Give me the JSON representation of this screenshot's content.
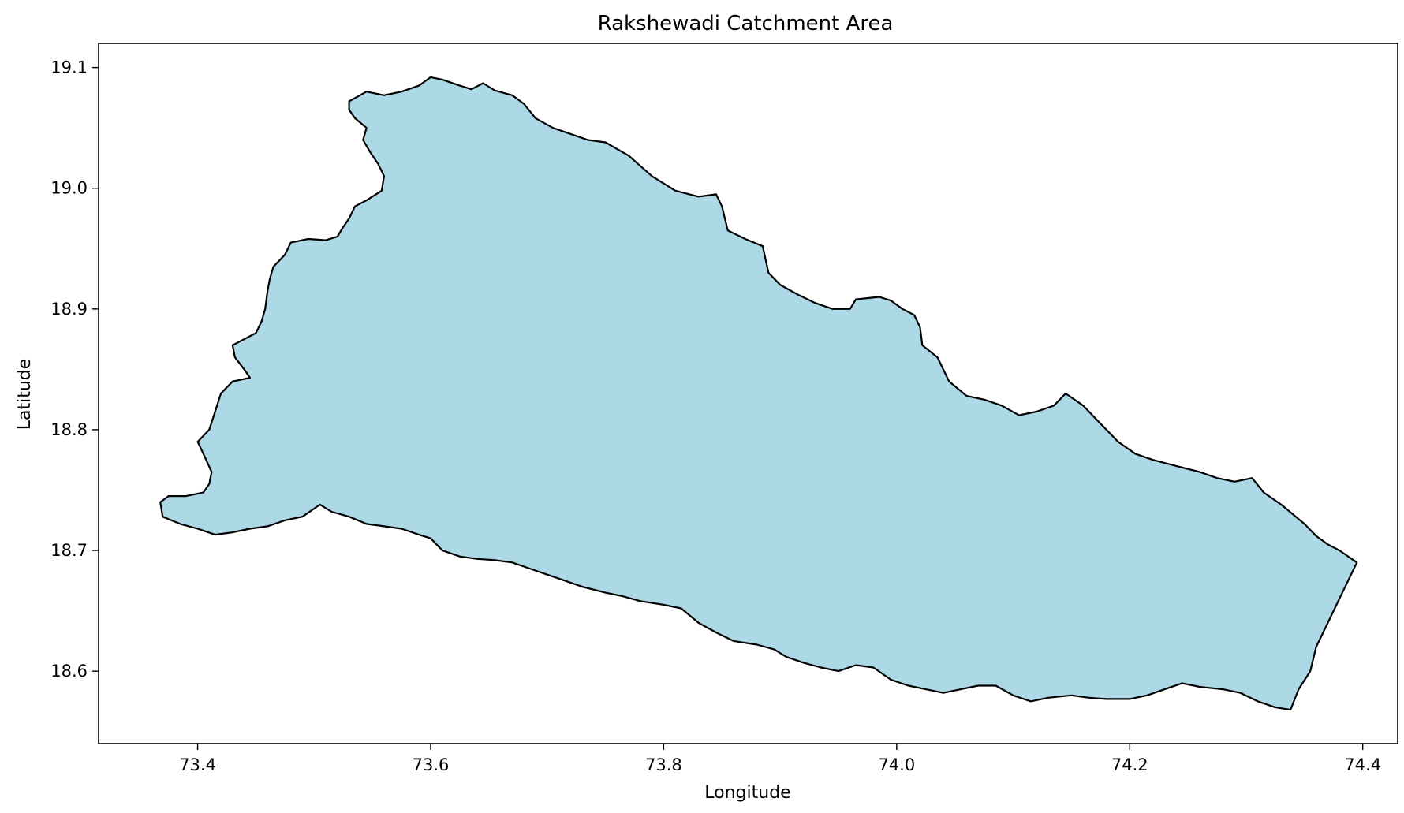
{
  "title": "Rakshewadi Catchment Area",
  "xlabel": "Longitude",
  "ylabel": "Latitude",
  "fill_color": "#add8e6",
  "edge_color": "#000000",
  "xlim": [
    73.315,
    74.43
  ],
  "ylim": [
    18.54,
    19.12
  ],
  "xticks": [
    {
      "value": 73.4,
      "label": "73.4"
    },
    {
      "value": 73.6,
      "label": "73.6"
    },
    {
      "value": 73.8,
      "label": "73.8"
    },
    {
      "value": 74.0,
      "label": "74.0"
    },
    {
      "value": 74.2,
      "label": "74.2"
    },
    {
      "value": 74.4,
      "label": "74.4"
    }
  ],
  "yticks": [
    {
      "value": 18.6,
      "label": "18.6"
    },
    {
      "value": 18.7,
      "label": "18.7"
    },
    {
      "value": 18.8,
      "label": "18.8"
    },
    {
      "value": 18.9,
      "label": "18.9"
    },
    {
      "value": 19.0,
      "label": "19.0"
    },
    {
      "value": 19.1,
      "label": "19.1"
    }
  ],
  "boundary": [
    [
      73.53,
      19.072
    ],
    [
      73.545,
      19.08
    ],
    [
      73.56,
      19.077
    ],
    [
      73.575,
      19.08
    ],
    [
      73.59,
      19.085
    ],
    [
      73.6,
      19.092
    ],
    [
      73.61,
      19.09
    ],
    [
      73.625,
      19.085
    ],
    [
      73.635,
      19.082
    ],
    [
      73.645,
      19.087
    ],
    [
      73.655,
      19.081
    ],
    [
      73.67,
      19.077
    ],
    [
      73.68,
      19.07
    ],
    [
      73.69,
      19.058
    ],
    [
      73.705,
      19.05
    ],
    [
      73.72,
      19.045
    ],
    [
      73.735,
      19.04
    ],
    [
      73.75,
      19.038
    ],
    [
      73.77,
      19.027
    ],
    [
      73.79,
      19.01
    ],
    [
      73.81,
      18.998
    ],
    [
      73.83,
      18.993
    ],
    [
      73.845,
      18.995
    ],
    [
      73.85,
      18.985
    ],
    [
      73.855,
      18.965
    ],
    [
      73.87,
      18.958
    ],
    [
      73.885,
      18.952
    ],
    [
      73.89,
      18.93
    ],
    [
      73.9,
      18.92
    ],
    [
      73.915,
      18.912
    ],
    [
      73.93,
      18.905
    ],
    [
      73.945,
      18.9
    ],
    [
      73.96,
      18.9
    ],
    [
      73.965,
      18.908
    ],
    [
      73.985,
      18.91
    ],
    [
      73.995,
      18.907
    ],
    [
      74.005,
      18.9
    ],
    [
      74.015,
      18.895
    ],
    [
      74.02,
      18.885
    ],
    [
      74.022,
      18.87
    ],
    [
      74.035,
      18.86
    ],
    [
      74.045,
      18.84
    ],
    [
      74.06,
      18.828
    ],
    [
      74.075,
      18.825
    ],
    [
      74.09,
      18.82
    ],
    [
      74.105,
      18.812
    ],
    [
      74.12,
      18.815
    ],
    [
      74.135,
      18.82
    ],
    [
      74.145,
      18.83
    ],
    [
      74.16,
      18.82
    ],
    [
      74.17,
      18.81
    ],
    [
      74.18,
      18.8
    ],
    [
      74.19,
      18.79
    ],
    [
      74.205,
      18.78
    ],
    [
      74.22,
      18.775
    ],
    [
      74.24,
      18.77
    ],
    [
      74.26,
      18.765
    ],
    [
      74.275,
      18.76
    ],
    [
      74.29,
      18.757
    ],
    [
      74.305,
      18.76
    ],
    [
      74.315,
      18.748
    ],
    [
      74.33,
      18.738
    ],
    [
      74.34,
      18.73
    ],
    [
      74.35,
      18.722
    ],
    [
      74.36,
      18.712
    ],
    [
      74.37,
      18.705
    ],
    [
      74.38,
      18.7
    ],
    [
      74.395,
      18.69
    ],
    [
      74.39,
      18.68
    ],
    [
      74.38,
      18.66
    ],
    [
      74.37,
      18.64
    ],
    [
      74.36,
      18.62
    ],
    [
      74.355,
      18.6
    ],
    [
      74.345,
      18.585
    ],
    [
      74.338,
      18.568
    ],
    [
      74.325,
      18.57
    ],
    [
      74.31,
      18.575
    ],
    [
      74.295,
      18.582
    ],
    [
      74.28,
      18.585
    ],
    [
      74.26,
      18.587
    ],
    [
      74.245,
      18.59
    ],
    [
      74.23,
      18.585
    ],
    [
      74.215,
      18.58
    ],
    [
      74.2,
      18.577
    ],
    [
      74.18,
      18.577
    ],
    [
      74.165,
      18.578
    ],
    [
      74.15,
      18.58
    ],
    [
      74.13,
      18.578
    ],
    [
      74.115,
      18.575
    ],
    [
      74.1,
      18.58
    ],
    [
      74.085,
      18.588
    ],
    [
      74.07,
      18.588
    ],
    [
      74.055,
      18.585
    ],
    [
      74.04,
      18.582
    ],
    [
      74.025,
      18.585
    ],
    [
      74.01,
      18.588
    ],
    [
      73.995,
      18.593
    ],
    [
      73.98,
      18.603
    ],
    [
      73.965,
      18.605
    ],
    [
      73.95,
      18.6
    ],
    [
      73.935,
      18.603
    ],
    [
      73.92,
      18.607
    ],
    [
      73.905,
      18.612
    ],
    [
      73.895,
      18.618
    ],
    [
      73.88,
      18.622
    ],
    [
      73.86,
      18.625
    ],
    [
      73.845,
      18.632
    ],
    [
      73.83,
      18.64
    ],
    [
      73.815,
      18.652
    ],
    [
      73.8,
      18.655
    ],
    [
      73.78,
      18.658
    ],
    [
      73.765,
      18.662
    ],
    [
      73.75,
      18.665
    ],
    [
      73.73,
      18.67
    ],
    [
      73.715,
      18.675
    ],
    [
      73.7,
      18.68
    ],
    [
      73.685,
      18.685
    ],
    [
      73.67,
      18.69
    ],
    [
      73.655,
      18.692
    ],
    [
      73.64,
      18.693
    ],
    [
      73.625,
      18.695
    ],
    [
      73.61,
      18.7
    ],
    [
      73.6,
      18.71
    ],
    [
      73.59,
      18.713
    ],
    [
      73.575,
      18.718
    ],
    [
      73.56,
      18.72
    ],
    [
      73.545,
      18.722
    ],
    [
      73.53,
      18.728
    ],
    [
      73.515,
      18.732
    ],
    [
      73.505,
      18.738
    ],
    [
      73.49,
      18.728
    ],
    [
      73.475,
      18.725
    ],
    [
      73.46,
      18.72
    ],
    [
      73.445,
      18.718
    ],
    [
      73.43,
      18.715
    ],
    [
      73.415,
      18.713
    ],
    [
      73.4,
      18.718
    ],
    [
      73.385,
      18.722
    ],
    [
      73.37,
      18.728
    ],
    [
      73.368,
      18.74
    ],
    [
      73.375,
      18.745
    ],
    [
      73.39,
      18.745
    ],
    [
      73.405,
      18.748
    ],
    [
      73.41,
      18.755
    ],
    [
      73.412,
      18.765
    ],
    [
      73.405,
      18.78
    ],
    [
      73.4,
      18.79
    ],
    [
      73.41,
      18.8
    ],
    [
      73.415,
      18.815
    ],
    [
      73.42,
      18.83
    ],
    [
      73.43,
      18.84
    ],
    [
      73.445,
      18.843
    ],
    [
      73.44,
      18.85
    ],
    [
      73.432,
      18.86
    ],
    [
      73.43,
      18.87
    ],
    [
      73.44,
      18.875
    ],
    [
      73.45,
      18.88
    ],
    [
      73.455,
      18.89
    ],
    [
      73.458,
      18.9
    ],
    [
      73.46,
      18.915
    ],
    [
      73.462,
      18.925
    ],
    [
      73.465,
      18.935
    ],
    [
      73.475,
      18.945
    ],
    [
      73.48,
      18.955
    ],
    [
      73.495,
      18.958
    ],
    [
      73.51,
      18.957
    ],
    [
      73.52,
      18.96
    ],
    [
      73.525,
      18.968
    ],
    [
      73.53,
      18.975
    ],
    [
      73.535,
      18.985
    ],
    [
      73.545,
      18.99
    ],
    [
      73.558,
      18.998
    ],
    [
      73.56,
      19.01
    ],
    [
      73.555,
      19.02
    ],
    [
      73.548,
      19.03
    ],
    [
      73.542,
      19.04
    ],
    [
      73.545,
      19.05
    ],
    [
      73.535,
      19.058
    ],
    [
      73.53,
      19.065
    ]
  ]
}
